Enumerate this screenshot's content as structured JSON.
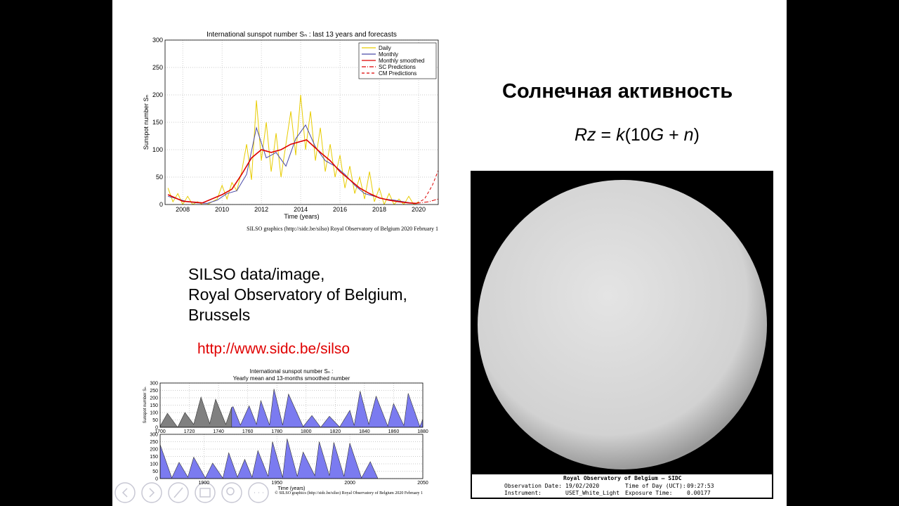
{
  "slide": {
    "title": "Солнечная активность",
    "formula": [
      "Rz",
      " = ",
      "k",
      "(10",
      "G",
      " + ",
      "n",
      ")"
    ],
    "credit": [
      "SILSO data/image,",
      "Royal Observatory of Belgium,",
      "Brussels"
    ],
    "link": "http://www.sidc.be/silso"
  },
  "chart_data": [
    {
      "type": "line",
      "title": "International sunspot number Sₙ : last 13 years and forecasts",
      "xlabel": "Time (years)",
      "ylabel": "Sunspot number Sₙ",
      "footer": "SILSO graphics (http://sidc.be/silso)  Royal Observatory of Belgium  2020 February 1",
      "xlim": [
        2007.1,
        2021
      ],
      "ylim": [
        0,
        300
      ],
      "xticks": [
        2008,
        2010,
        2012,
        2014,
        2016,
        2018,
        2020
      ],
      "yticks": [
        0,
        50,
        100,
        150,
        200,
        250,
        300
      ],
      "grid": true,
      "legend": "upper right",
      "series": [
        {
          "name": "Daily",
          "color": "#e8cc00",
          "dash": "solid",
          "x": [
            2007.25,
            2007.5,
            2007.75,
            2008,
            2008.25,
            2008.5,
            2008.75,
            2009,
            2009.25,
            2009.5,
            2009.75,
            2010,
            2010.25,
            2010.5,
            2010.75,
            2011,
            2011.25,
            2011.5,
            2011.75,
            2012,
            2012.25,
            2012.5,
            2012.75,
            2013,
            2013.25,
            2013.5,
            2013.75,
            2014,
            2014.25,
            2014.5,
            2014.75,
            2015,
            2015.25,
            2015.5,
            2015.75,
            2016,
            2016.25,
            2016.5,
            2016.75,
            2017,
            2017.25,
            2017.5,
            2017.75,
            2018,
            2018.25,
            2018.5,
            2018.75,
            2019,
            2019.25,
            2019.5,
            2019.75,
            2020
          ],
          "values": [
            30,
            5,
            20,
            0,
            15,
            0,
            5,
            0,
            0,
            5,
            10,
            35,
            10,
            40,
            25,
            60,
            110,
            45,
            190,
            80,
            150,
            60,
            130,
            50,
            110,
            170,
            90,
            200,
            100,
            170,
            80,
            140,
            60,
            110,
            50,
            90,
            30,
            70,
            20,
            50,
            10,
            60,
            5,
            30,
            0,
            20,
            0,
            10,
            0,
            15,
            0,
            5
          ]
        },
        {
          "name": "Monthly",
          "color": "#4a4aa8",
          "dash": "solid",
          "x": [
            2007.25,
            2007.75,
            2008.25,
            2008.75,
            2009.25,
            2009.75,
            2010.25,
            2010.75,
            2011.25,
            2011.75,
            2012.25,
            2012.75,
            2013.25,
            2013.75,
            2014.25,
            2014.75,
            2015.25,
            2015.75,
            2016.25,
            2016.75,
            2017.25,
            2017.75,
            2018.25,
            2018.75,
            2019.25,
            2019.75
          ],
          "values": [
            15,
            10,
            5,
            3,
            2,
            8,
            20,
            25,
            55,
            140,
            85,
            95,
            70,
            120,
            145,
            105,
            80,
            70,
            55,
            35,
            20,
            15,
            10,
            8,
            5,
            2
          ]
        },
        {
          "name": "Monthly smoothed",
          "color": "#dd0000",
          "dash": "solid",
          "x": [
            2007.25,
            2008,
            2009,
            2010,
            2010.5,
            2011,
            2011.5,
            2012,
            2012.5,
            2013,
            2013.5,
            2014,
            2014.3,
            2015,
            2015.5,
            2016,
            2016.5,
            2017,
            2017.5,
            2018,
            2018.5,
            2019,
            2019.5,
            2019.9
          ],
          "values": [
            18,
            6,
            3,
            18,
            28,
            55,
            85,
            100,
            95,
            100,
            110,
            115,
            118,
            95,
            80,
            60,
            45,
            30,
            20,
            12,
            8,
            5,
            3,
            2
          ]
        },
        {
          "name": "SC Predictions",
          "color": "#dd0000",
          "dash": "dashdot",
          "x": [
            2019.9,
            2020.5,
            2021
          ],
          "values": [
            2,
            5,
            10
          ]
        },
        {
          "name": "CM Predictions",
          "color": "#dd0000",
          "dash": "dashed",
          "x": [
            2019.9,
            2020.3,
            2020.7,
            2021
          ],
          "values": [
            2,
            10,
            35,
            62
          ]
        }
      ]
    },
    {
      "type": "area",
      "title": "International sunspot number Sₙ :",
      "subtitle": "Yearly mean and 13-months smoothed number",
      "ylabel": "Sunspot number Sₙ",
      "xlim": [
        1700,
        1880
      ],
      "ylim": [
        0,
        300
      ],
      "xticks": [
        1700,
        1720,
        1740,
        1760,
        1780,
        1800,
        1820,
        1840,
        1860,
        1880
      ],
      "yticks": [
        0,
        50,
        100,
        150,
        200,
        250,
        300
      ],
      "grid": true,
      "series": [
        {
          "color": "#808080",
          "x": [
            1700,
            1705,
            1712,
            1717,
            1723,
            1728,
            1734,
            1738,
            1745,
            1749
          ],
          "values": [
            8,
            95,
            0,
            100,
            20,
            205,
            25,
            190,
            20,
            135
          ]
        },
        {
          "color": "#7b7bf0",
          "x": [
            1749,
            1750,
            1755,
            1761,
            1766,
            1769,
            1775,
            1778,
            1784,
            1788,
            1798,
            1804,
            1810,
            1816,
            1823,
            1830,
            1833,
            1837,
            1843,
            1848,
            1856,
            1860,
            1867,
            1870,
            1878,
            1880
          ],
          "values": [
            135,
            140,
            15,
            145,
            20,
            180,
            15,
            260,
            15,
            225,
            5,
            80,
            0,
            75,
            2,
            115,
            12,
            245,
            20,
            210,
            8,
            160,
            12,
            230,
            5,
            55
          ]
        }
      ]
    },
    {
      "type": "area",
      "xlabel": "Time (years)",
      "footer": "© SILSO graphics (http://sidc.be/silso)  Royal Observatory of Belgium  2020 February 1",
      "xlim": [
        1870,
        2050
      ],
      "ylim": [
        0,
        300
      ],
      "xticks": [
        1900,
        1950,
        2000,
        2050
      ],
      "yticks": [
        0,
        50,
        100,
        150,
        200,
        250,
        300
      ],
      "grid": true,
      "series": [
        {
          "color": "#7b7bf0",
          "x": [
            1870,
            1878,
            1883,
            1889,
            1893,
            1901,
            1906,
            1913,
            1917,
            1923,
            1928,
            1933,
            1937,
            1944,
            1947,
            1954,
            1957,
            1964,
            1968,
            1976,
            1979,
            1986,
            1989,
            1996,
            2000,
            2008,
            2014,
            2019
          ],
          "values": [
            230,
            5,
            110,
            10,
            145,
            5,
            105,
            3,
            175,
            10,
            130,
            9,
            190,
            15,
            250,
            7,
            270,
            15,
            180,
            20,
            250,
            20,
            245,
            15,
            240,
            5,
            115,
            5
          ]
        }
      ]
    }
  ],
  "image": {
    "caption_title": "Royal Observatory of Belgium — SIDC",
    "fields": [
      [
        "Observation Date:",
        "19/02/2020"
      ],
      [
        "Time of Day (UCT):",
        "09:27:53"
      ],
      [
        "Instrument:",
        "USET_White_Light"
      ],
      [
        "Exposure Time:",
        "0.00177"
      ]
    ]
  }
}
